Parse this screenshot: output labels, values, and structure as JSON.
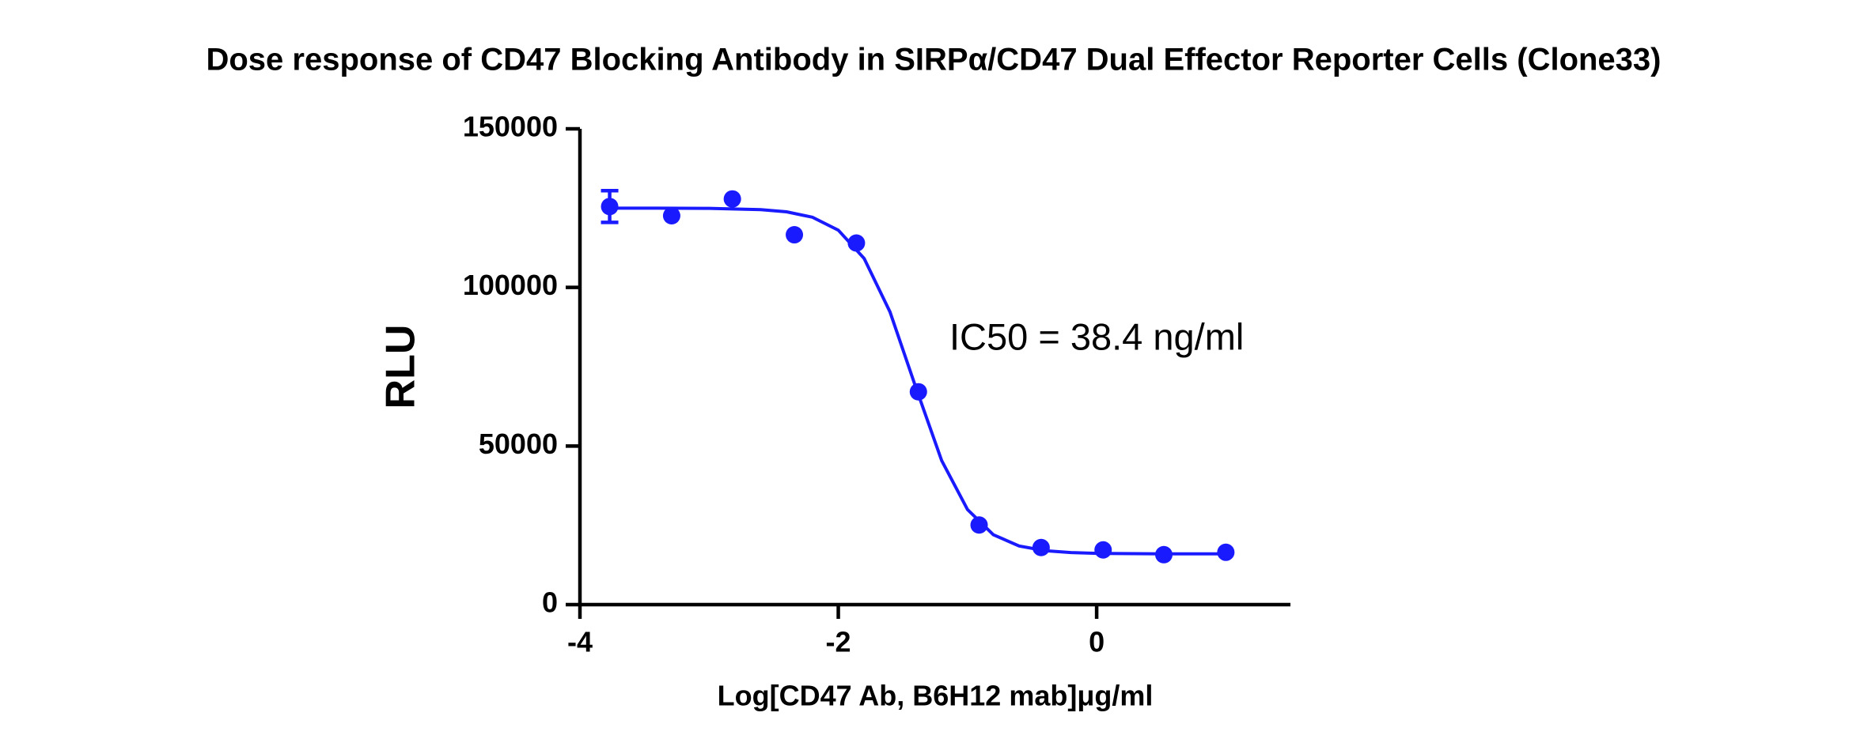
{
  "chart_data": {
    "type": "scatter",
    "title": "Dose response of CD47 Blocking Antibody in SIRPα/CD47 Dual Effector Reporter Cells (Clone33)",
    "x_label": "Log[CD47 Ab, B6H12 mab]μg/ml",
    "y_label": "RLU",
    "annotation": "IC50 = 38.4 ng/ml",
    "color": "#1a1aff",
    "x": [
      -3.77,
      -3.29,
      -2.82,
      -2.34,
      -1.86,
      -1.38,
      -0.91,
      -0.43,
      0.05,
      0.52,
      1.0
    ],
    "values": [
      125500,
      122600,
      127900,
      116600,
      114000,
      67100,
      25100,
      18000,
      17250,
      15750,
      16500
    ],
    "errors": [
      5000,
      null,
      null,
      null,
      null,
      null,
      null,
      null,
      null,
      null,
      null
    ],
    "fit": {
      "x": [
        -3.8,
        -3.4,
        -3.0,
        -2.6,
        -2.4,
        -2.2,
        -2.0,
        -1.8,
        -1.6,
        -1.4,
        -1.2,
        -1.0,
        -0.8,
        -0.6,
        -0.4,
        -0.2,
        0,
        0.5,
        1.0
      ],
      "values": [
        125000,
        124990,
        124930,
        124530,
        123840,
        122130,
        118060,
        109120,
        92300,
        68500,
        45430,
        29990,
        22040,
        18480,
        17000,
        16400,
        16160,
        16020,
        16000
      ]
    },
    "xlim": [
      -4,
      1.5
    ],
    "ylim": [
      0,
      150000
    ],
    "xticks": [
      -4,
      -2,
      0
    ],
    "yticks": [
      0,
      50000,
      100000,
      150000
    ]
  }
}
